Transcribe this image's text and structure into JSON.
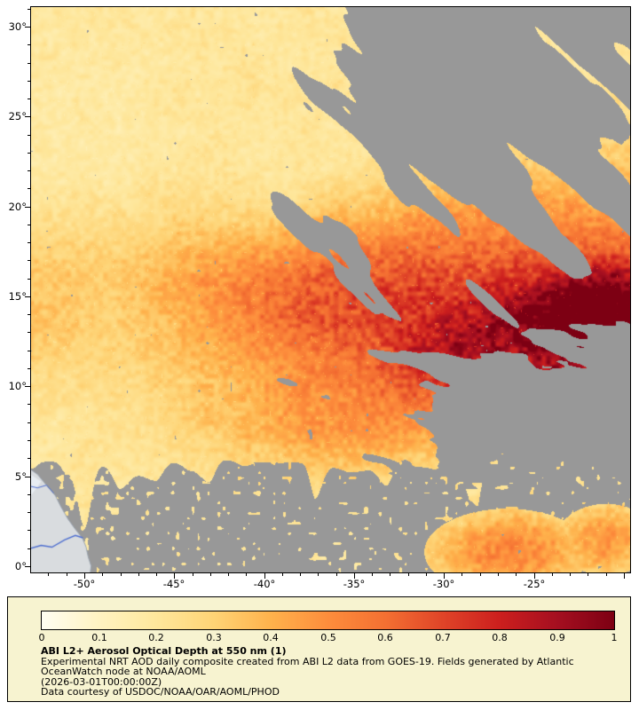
{
  "map": {
    "lat_ticks": [
      "30°",
      "25°",
      "20°",
      "15°",
      "10°",
      "5°",
      "0°"
    ],
    "lon_ticks": [
      "-50°",
      "-45°",
      "-40°",
      "-35°",
      "-30°",
      "-25°"
    ],
    "missing_color": "#989898",
    "land_color": "#d9dcdf",
    "river_color": "#4f6fd0"
  },
  "colorbar": {
    "ticks": [
      "0",
      "0.1",
      "0.2",
      "0.3",
      "0.4",
      "0.5",
      "0.6",
      "0.7",
      "0.8",
      "0.9",
      "1"
    ],
    "stops": [
      "#fffef2",
      "#fff3c2",
      "#fee79c",
      "#fed476",
      "#feb24c",
      "#fd8d3c",
      "#f47032",
      "#e04428",
      "#cc1f1e",
      "#a50f20",
      "#7d0013"
    ]
  },
  "legend": {
    "title": "ABI L2+ Aerosol Optical Depth at 550 nm (1)",
    "description": "Experimental NRT AOD daily composite created from ABI L2 data from GOES-19. Fields generated by Atlantic OceanWatch node at NOAA/AOML",
    "timestamp": "(2026-03-01T00:00:00Z)",
    "credit": "Data courtesy of USDOC/NOAA/OAR/AOML/PHOD",
    "background": "#f7f3d0"
  },
  "chart_data": {
    "type": "heatmap",
    "title": "ABI L2+ Aerosol Optical Depth at 550 nm (1)",
    "variable": "Aerosol Optical Depth (AOD) at 550 nm",
    "lat_ticks_deg": [
      30,
      25,
      20,
      15,
      10,
      5,
      0
    ],
    "lon_ticks_deg": [
      -50,
      -45,
      -40,
      -35,
      -30,
      -25
    ],
    "lat_range_deg": [
      -0.4,
      31.1
    ],
    "lon_range_deg": [
      -53.0,
      -19.6
    ],
    "colorbar_range": [
      0,
      1
    ],
    "colorbar_ticks": [
      0,
      0.1,
      0.2,
      0.3,
      0.4,
      0.5,
      0.6,
      0.7,
      0.8,
      0.9,
      1
    ],
    "legend_position": "bottom",
    "features": [
      {
        "region": "10-16N, 22-33W",
        "aod_reading": "0.8-1.0 dense dust plume core (dark red)"
      },
      {
        "region": "12-20N, 33-50W",
        "aod_reading": "0.4-0.7 elevated plume (orange-red)"
      },
      {
        "region": "north of 22N",
        "aod_reading": "0.1-0.25 background (pale yellow)"
      },
      {
        "region": "upper-right diagonal streaks, right-middle patches, south of ~6N",
        "aod_reading": "no data / cloud mask (gray)"
      },
      {
        "region": "southwest corner",
        "aod_reading": "land, South America coastline with rivers"
      },
      {
        "region": "0-3N, 22-30W",
        "aod_reading": "0.4-0.6 patch (orange)"
      }
    ]
  }
}
